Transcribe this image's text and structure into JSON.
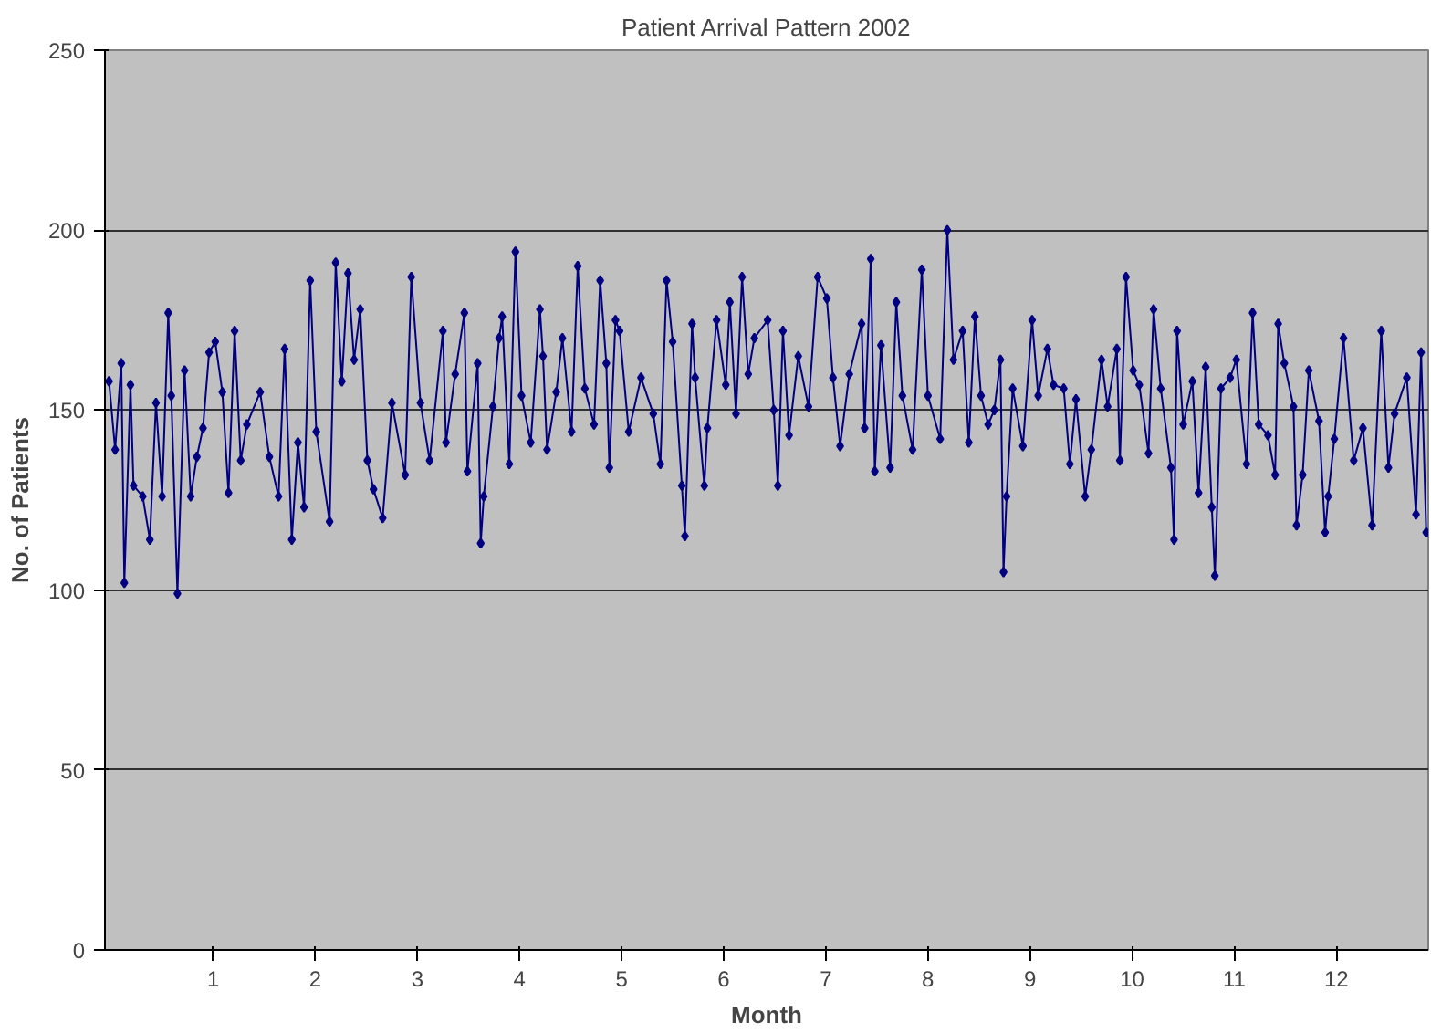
{
  "chart_data": {
    "type": "line",
    "title": "Patient Arrival Pattern 2002",
    "xlabel": "Month",
    "ylabel": "No. of Patients",
    "x": [
      -0.02,
      0.04,
      0.1,
      0.13,
      0.19,
      0.22,
      0.31,
      0.38,
      0.44,
      0.5,
      0.56,
      0.59,
      0.65,
      0.72,
      0.78,
      0.84,
      0.9,
      0.96,
      1.02,
      1.09,
      1.15,
      1.21,
      1.27,
      1.33,
      1.46,
      1.55,
      1.64,
      1.7,
      1.77,
      1.83,
      1.89,
      1.95,
      2.01,
      2.14,
      2.2,
      2.26,
      2.32,
      2.38,
      2.44,
      2.51,
      2.57,
      2.66,
      2.75,
      2.88,
      2.94,
      3.03,
      3.12,
      3.25,
      3.28,
      3.37,
      3.46,
      3.49,
      3.59,
      3.62,
      3.65,
      3.74,
      3.8,
      3.83,
      3.9,
      3.96,
      4.02,
      4.11,
      4.2,
      4.23,
      4.27,
      4.36,
      4.42,
      4.51,
      4.57,
      4.64,
      4.73,
      4.79,
      4.85,
      4.88,
      4.94,
      4.98,
      5.07,
      5.19,
      5.31,
      5.38,
      5.44,
      5.5,
      5.59,
      5.62,
      5.69,
      5.72,
      5.81,
      5.84,
      5.93,
      6.02,
      6.06,
      6.12,
      6.18,
      6.24,
      6.3,
      6.43,
      6.49,
      6.53,
      6.58,
      6.64,
      6.73,
      6.83,
      6.92,
      7.01,
      7.07,
      7.14,
      7.23,
      7.35,
      7.38,
      7.44,
      7.48,
      7.54,
      7.63,
      7.69,
      7.75,
      7.85,
      7.94,
      8.0,
      8.12,
      8.19,
      8.25,
      8.34,
      8.4,
      8.46,
      8.52,
      8.59,
      8.65,
      8.71,
      8.74,
      8.77,
      8.83,
      8.93,
      9.02,
      9.08,
      9.17,
      9.23,
      9.33,
      9.39,
      9.45,
      9.54,
      9.6,
      9.7,
      9.76,
      9.85,
      9.88,
      9.94,
      10.01,
      10.07,
      10.16,
      10.21,
      10.28,
      10.38,
      10.41,
      10.44,
      10.5,
      10.59,
      10.65,
      10.72,
      10.78,
      10.81,
      10.87,
      10.96,
      11.02,
      11.12,
      11.18,
      11.24,
      11.33,
      11.4,
      11.43,
      11.49,
      11.58,
      11.61,
      11.67,
      11.73,
      11.83,
      11.89,
      11.92,
      11.98,
      12.07,
      12.17,
      12.26,
      12.35,
      12.44,
      12.51,
      12.57,
      12.69,
      12.78,
      12.83,
      12.88
    ],
    "series": [
      {
        "color": "#000080",
        "values": [
          158,
          139,
          163,
          102,
          157,
          129,
          126,
          114,
          152,
          126,
          177,
          154,
          99,
          161,
          126,
          137,
          145,
          166,
          169,
          155,
          127,
          172,
          136,
          146,
          155,
          137,
          126,
          167,
          114,
          141,
          123,
          186,
          144,
          119,
          191,
          158,
          188,
          164,
          178,
          136,
          128,
          120,
          152,
          132,
          187,
          152,
          136,
          172,
          141,
          160,
          177,
          133,
          163,
          113,
          126,
          151,
          170,
          176,
          135,
          194,
          154,
          141,
          178,
          165,
          139,
          155,
          170,
          144,
          190,
          156,
          146,
          186,
          163,
          134,
          175,
          172,
          144,
          159,
          149,
          135,
          186,
          169,
          129,
          115,
          174,
          159,
          129,
          145,
          175,
          157,
          180,
          149,
          187,
          160,
          170,
          175,
          150,
          129,
          172,
          143,
          165,
          151,
          187,
          181,
          159,
          140,
          160,
          174,
          145,
          192,
          133,
          168,
          134,
          180,
          154,
          139,
          189,
          154,
          142,
          200,
          164,
          172,
          141,
          176,
          154,
          146,
          150,
          164,
          105,
          126,
          156,
          140,
          175,
          154,
          167,
          157,
          156,
          135,
          153,
          126,
          139,
          164,
          151,
          167,
          136,
          187,
          161,
          157,
          138,
          178,
          156,
          134,
          114,
          172,
          146,
          158,
          127,
          162,
          123,
          104,
          156,
          159,
          164,
          135,
          177,
          146,
          143,
          132,
          174,
          163,
          151,
          118,
          132,
          161,
          147,
          116,
          126,
          142,
          170,
          136,
          145,
          118,
          172,
          134,
          149,
          159,
          121,
          166,
          116
        ]
      }
    ],
    "xlim": [
      -0.06,
      12.9
    ],
    "xticks": [
      1,
      2,
      3,
      4,
      5,
      6,
      7,
      8,
      9,
      10,
      11,
      12
    ],
    "ylim": [
      0,
      250
    ],
    "yticks": [
      0,
      50,
      100,
      150,
      200,
      250
    ],
    "grid": "y",
    "marker": "diamond",
    "line_style": "solid"
  }
}
